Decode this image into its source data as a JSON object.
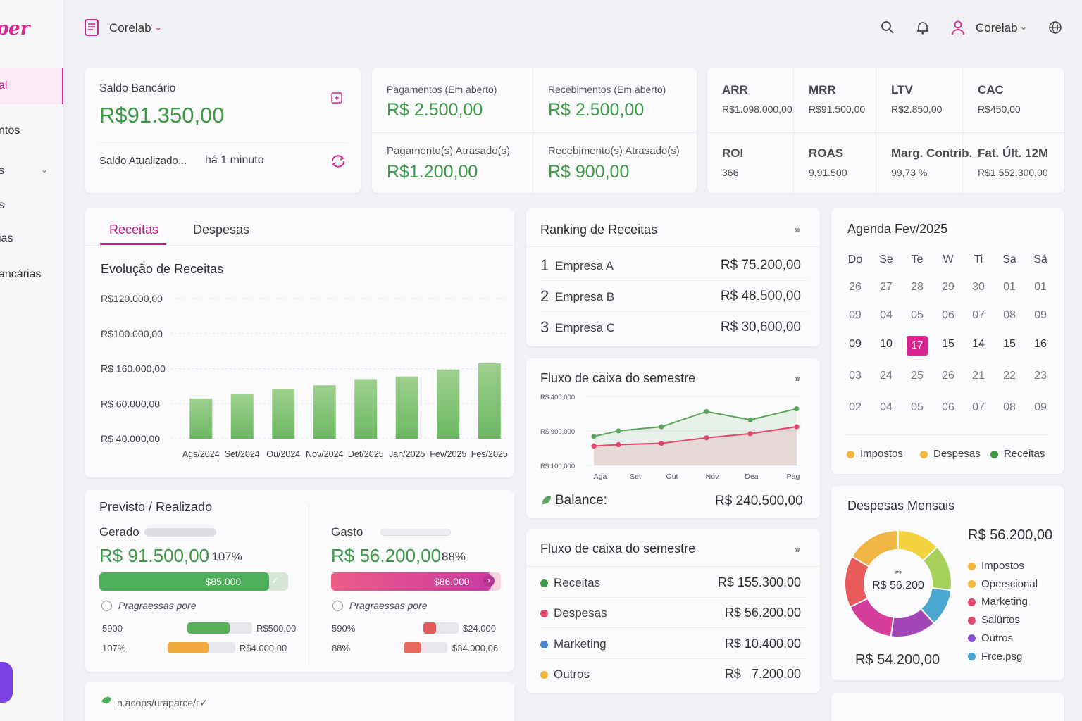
{
  "sidebar": {
    "logo": "per",
    "items": [
      {
        "label": "al"
      },
      {
        "label": "ntos"
      },
      {
        "label": "s"
      },
      {
        "label": "s"
      },
      {
        "label": "ias"
      },
      {
        "label": "ancárias"
      }
    ]
  },
  "topbar": {
    "company": "Corelab",
    "user": "Corelab"
  },
  "saldo": {
    "title": "Saldo Bancário",
    "value": "R$91.350,00",
    "updated_label": "Saldo Atualizado...",
    "updated_time": "há 1 minuto"
  },
  "open_items": {
    "pag_aberto_label": "Pagamentos (Em aberto)",
    "pag_aberto_value": "R$ 2.500,00",
    "rec_aberto_label": "Recebimentos (Em aberto)",
    "rec_aberto_value": "R$ 2.500,00",
    "pag_atrasado_label": "Pagamento(s) Atrasado(s)",
    "pag_atrasado_value": "R$1.200,00",
    "rec_atrasado_label": "Recebimento(s) Atrasado(s)",
    "rec_atrasado_value": "R$ 900,00"
  },
  "kpis": [
    {
      "label": "ARR",
      "value": "R$1.098.000,00"
    },
    {
      "label": "MRR",
      "value": "R$91.500,00"
    },
    {
      "label": "LTV",
      "value": "R$2.850,00"
    },
    {
      "label": "CAC",
      "value": "R$450,00"
    },
    {
      "label": "ROI",
      "value": "366"
    },
    {
      "label": "ROAS",
      "value": "9,91.500"
    },
    {
      "label": "Marg. Contrib.",
      "value": "99,73 %"
    },
    {
      "label": "Fat. Últ. 12M",
      "value": "R$1.552.300,00"
    }
  ],
  "revenue_tabs": {
    "tabs": [
      "Receitas",
      "Despesas"
    ],
    "active": "Receitas",
    "chart_title": "Evolução de Receitas"
  },
  "chart_data": [
    {
      "type": "bar",
      "title": "Evolução de Receitas",
      "y_tick_labels": [
        "R$120.000,00",
        "R$100.000,00",
        "R$ 160.000,00",
        "R$ 60.000,00",
        "R$ 40.000,00"
      ],
      "categories": [
        "Ags/2024",
        "Set/2024",
        "Ou/2024",
        "Nov/2024",
        "Det/2025",
        "Jan/2025",
        "Fev/2025",
        "Fes/2025"
      ],
      "values": [
        63000,
        65500,
        68500,
        70500,
        74000,
        75500,
        79500,
        83000
      ],
      "ylim": [
        40000,
        120000
      ],
      "color": "#78bf6c",
      "grid": true
    },
    {
      "type": "line",
      "title": "Fluxo de caixa do semestre",
      "y_tick_labels": [
        "R$ 400,000",
        "R$ 900,000",
        "R$ 100,000"
      ],
      "categories": [
        "Aga",
        "Set",
        "Out",
        "Nov",
        "Dea",
        "Pag"
      ],
      "series": [
        {
          "values": [
            38,
            46,
            52,
            74,
            62,
            78
          ],
          "color": "#5aa55a"
        },
        {
          "values": [
            24,
            26,
            28,
            36,
            42,
            52
          ],
          "color": "#e0476b"
        }
      ],
      "ylim": [
        0,
        100
      ]
    },
    {
      "type": "pie",
      "title": "Despesas Mensais",
      "center_label": "R$ 56.200",
      "slices": [
        {
          "label": "Impostos",
          "value": 16,
          "color": "#a6d05a"
        },
        {
          "label": "Operscional",
          "value": 13,
          "color": "#4aa5cf"
        },
        {
          "label": "Marketing",
          "value": 16,
          "color": "#a346b8"
        },
        {
          "label": "Salürtos",
          "value": 18,
          "color": "#d43d9c"
        },
        {
          "label": "Outros",
          "value": 18,
          "color": "#e85a5a"
        },
        {
          "label": "Frce.psg",
          "value": 19,
          "color": "#f0b542"
        }
      ],
      "yellow_top": 0
    }
  ],
  "ranking": {
    "title": "Ranking de Receitas",
    "rows": [
      {
        "pos": "1",
        "name": "Empresa A",
        "value": "R$ 75.200,00"
      },
      {
        "pos": "2",
        "name": "Empresa B",
        "value": "R$ 48.500,00"
      },
      {
        "pos": "3",
        "name": "Empresa C",
        "value": "R$ 30,600,00"
      }
    ]
  },
  "fluxo1": {
    "title": "Fluxo de caixa do semestre",
    "balance_label": "Balance:",
    "balance_value": "R$ 240.500,00"
  },
  "fluxo2": {
    "title": "Fluxo de caixa do semestre",
    "rows": [
      {
        "name": "Receitas",
        "value": "R$ 155.300,00",
        "color": "#3c9a45"
      },
      {
        "name": "Despesas",
        "value": "R$ 56.200,00",
        "color": "#e0476b"
      },
      {
        "name": "Marketing",
        "value": "R$ 10.400,00",
        "color": "#4a86d0"
      },
      {
        "name": "Outros",
        "value": "R$   7.200,00",
        "color": "#f0b542"
      }
    ]
  },
  "agenda": {
    "title": "Agenda Fev/2025",
    "days": [
      "Do",
      "Se",
      "Te",
      "W",
      "Ti",
      "Sa",
      "Sá"
    ],
    "weeks": [
      [
        "26",
        "27",
        "28",
        "29",
        "30",
        "01",
        "01"
      ],
      [
        "09",
        "04",
        "05",
        "06",
        "07",
        "08",
        "09"
      ],
      [
        "09",
        "10",
        "17",
        "15",
        "14",
        "15",
        "16"
      ],
      [
        "03",
        "24",
        "25",
        "26",
        "21",
        "22",
        "23"
      ],
      [
        "02",
        "04",
        "05",
        "06",
        "07",
        "08",
        "09"
      ]
    ],
    "today": "17",
    "legend": [
      {
        "label": "Impostos",
        "color": "#f0b542"
      },
      {
        "label": "Despesas",
        "color": "#f0b542"
      },
      {
        "label": "Receitas",
        "color": "#3c9a45"
      }
    ]
  },
  "despesas": {
    "title": "Despesas Mensais",
    "top_value": "R$ 56.200,00",
    "bottom_value": "R$ 54.200,00",
    "center_tiny": "ᵖʳᵍ",
    "legend": [
      {
        "label": "Impostos",
        "color": "#f0b542"
      },
      {
        "label": "Operscional",
        "color": "#f0b542"
      },
      {
        "label": "Marketing",
        "color": "#e0476b"
      },
      {
        "label": "Salürtos",
        "color": "#e0476b"
      },
      {
        "label": "Outros",
        "color": "#8a4fd1"
      },
      {
        "label": "Frce.psg",
        "color": "#4aa5cf"
      }
    ]
  },
  "previsto": {
    "title": "Previsto / Realizado",
    "gerado_label": "Gerado",
    "gerado_value": "R$ 91.500,00",
    "gerado_pct": "· 107%",
    "gerado_bar_label": "$85.000",
    "gerado_progress": 0.9,
    "gasto_label": "Gasto",
    "gasto_value": "R$ 56.200,00",
    "gasto_pct": "88%",
    "gasto_bar_label": "$86.000",
    "gasto_progress": 0.94,
    "progress_text_left": "Pragraessas pore",
    "progress_text_right": "Pragraessas pore",
    "left_rows": [
      {
        "a": "5900",
        "b": "R$500,00",
        "fill": 0.65,
        "color": "#5aaf5a"
      },
      {
        "a": "107%",
        "b": "R$4.000,00",
        "fill": 0.6,
        "color": "#f0a93d"
      }
    ],
    "right_rows": [
      {
        "a": "590%",
        "b": "$24.000",
        "fill": 0.35,
        "color": "#e05a5a"
      },
      {
        "a": "88%",
        "b": "$34.000,06",
        "fill": 0.4,
        "color": "#e86a5a"
      }
    ]
  },
  "footer": {
    "text": "n.acops/uraparce/ᴦ✓"
  }
}
